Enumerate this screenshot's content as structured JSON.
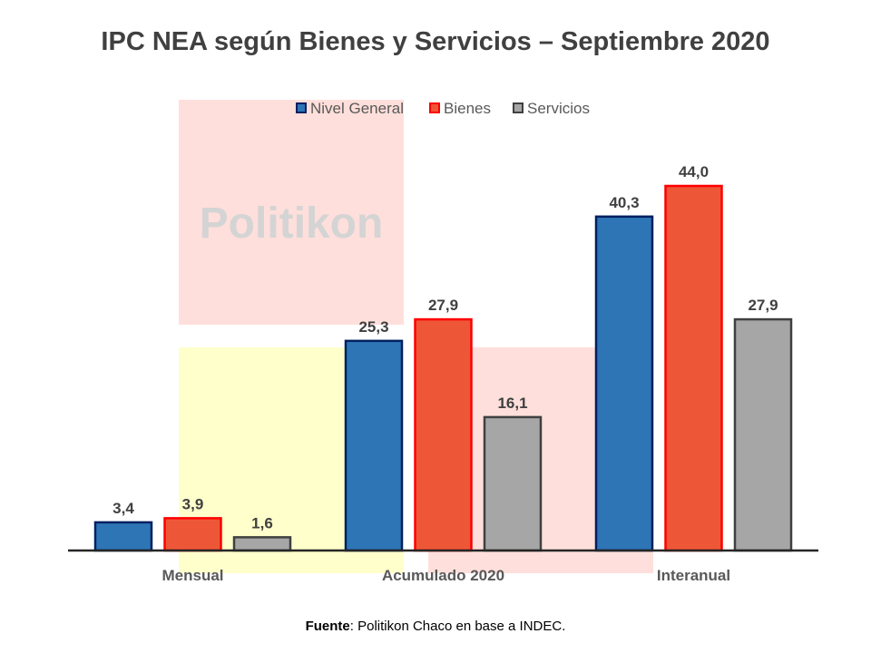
{
  "chart_data": {
    "type": "bar",
    "title": "IPC NEA según Bienes y Servicios – Septiembre 2020",
    "categories": [
      "Mensual",
      "Acumulado 2020",
      "Interanual"
    ],
    "series": [
      {
        "name": "Nivel General",
        "values": [
          3.4,
          25.3,
          40.3
        ],
        "labels": [
          "3,4",
          "25,3",
          "40,3"
        ],
        "fill": "#2e75b6",
        "stroke": "#002060"
      },
      {
        "name": "Bienes",
        "values": [
          3.9,
          27.9,
          44.0
        ],
        "labels": [
          "3,9",
          "27,9",
          "44,0"
        ],
        "fill": "#ed5738",
        "stroke": "#ff0000"
      },
      {
        "name": "Servicios",
        "values": [
          1.6,
          16.1,
          27.9
        ],
        "labels": [
          "1,6",
          "16,1",
          "27,9"
        ],
        "fill": "#a6a6a6",
        "stroke": "#404040"
      }
    ],
    "ylim": [
      0,
      44
    ],
    "legend": "top",
    "grid": false,
    "xlabel": "",
    "ylabel": ""
  },
  "watermark": "Politikon",
  "source": {
    "label": "Fuente",
    "text": ": Politikon Chaco en base a INDEC."
  }
}
